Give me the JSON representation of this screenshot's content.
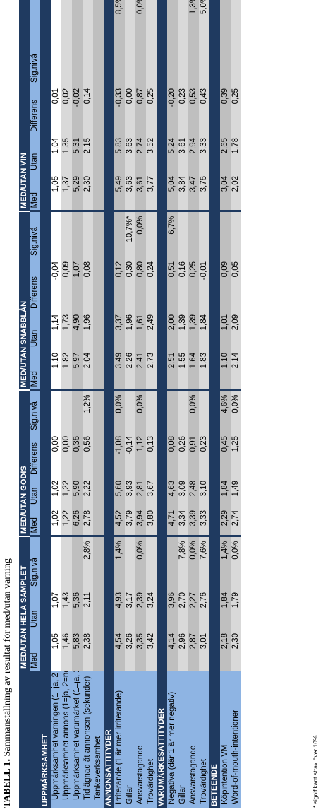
{
  "caption": {
    "number": "TABELL 1.",
    "text": "Sammanställning av resultat för med/utan varning"
  },
  "footnote": "* signifikant strax över 10%",
  "groups": [
    "MED/UTAN HELA SAMPLET",
    "MED/UTAN GODIS",
    "MED/UTAN SNABBLÅN",
    "MED/UTAN VIN"
  ],
  "columns": {
    "hela": [
      "Med",
      "Utan",
      "Sig.nivå"
    ],
    "other": [
      "Med",
      "Utan",
      "Differens",
      "Sig.nivå"
    ]
  },
  "sections": [
    {
      "title": "UPPMÄRKSAMHET",
      "rows": [
        {
          "label": "Uppmärksamhet varningen (1=ja, 2=nej)",
          "hela": [
            "1,05",
            "1,07",
            ""
          ],
          "godis": [
            "1,02",
            "1,02",
            "0,00",
            ""
          ],
          "snabblan": [
            "1,10",
            "1,14",
            "-0,04",
            ""
          ],
          "vin": [
            "1,05",
            "1,04",
            "0,01",
            ""
          ]
        },
        {
          "label": "Uppmärksamhet annons (1=ja, 2=nej)",
          "hela": [
            "1,46",
            "1,43",
            ""
          ],
          "godis": [
            "1,22",
            "1,22",
            "0,00",
            ""
          ],
          "snabblan": [
            "1,82",
            "1,73",
            "0,09",
            ""
          ],
          "vin": [
            "1,37",
            "1,35",
            "0,02",
            ""
          ]
        },
        {
          "label": "Uppmärksamhet varumärket (1=ja, 2=nej)",
          "hela": [
            "5,83",
            "5,36",
            ""
          ],
          "godis": [
            "6,26",
            "5,90",
            "0,36",
            ""
          ],
          "snabblan": [
            "5,97",
            "4,90",
            "1,07",
            ""
          ],
          "vin": [
            "5,29",
            "5,31",
            "-0,02",
            ""
          ]
        },
        {
          "label": "Tid ägnad åt annonsen (sekunder)",
          "hela": [
            "2,38",
            "2,11",
            "2,8%"
          ],
          "godis": [
            "2,78",
            "2,22",
            "0,56",
            "1,2%"
          ],
          "snabblan": [
            "2,04",
            "1,96",
            "0,08",
            ""
          ],
          "vin": [
            "2,30",
            "2,15",
            "0,14",
            ""
          ]
        },
        {
          "label": "Tankeverksamhet",
          "hela": [
            "",
            "",
            ""
          ],
          "godis": [
            "",
            "",
            "",
            ""
          ],
          "snabblan": [
            "",
            "",
            "",
            ""
          ],
          "vin": [
            "",
            "",
            "",
            ""
          ]
        }
      ]
    },
    {
      "title": "ANNONSATTITYDER",
      "rows": [
        {
          "label": "Irriterande (1 är mer irriterande)",
          "hela": [
            "4,54",
            "4,93",
            "1,4%"
          ],
          "godis": [
            "4,52",
            "5,60",
            "-1,08",
            "0,0%"
          ],
          "snabblan": [
            "3,49",
            "3,37",
            "0,12",
            ""
          ],
          "vin": [
            "5,49",
            "5,83",
            "-0,33",
            "8,5%"
          ]
        },
        {
          "label": "Gillar",
          "hela": [
            "3,26",
            "3,17",
            ""
          ],
          "godis": [
            "3,79",
            "3,93",
            "-0,14",
            ""
          ],
          "snabblan": [
            "2,26",
            "1,96",
            "0,30",
            "10,7%*"
          ],
          "vin": [
            "3,63",
            "3,63",
            "0,00",
            ""
          ]
        },
        {
          "label": "Ansvarstagande",
          "hela": [
            "3,35",
            "2,39",
            "0,0%"
          ],
          "godis": [
            "3,94",
            "2,81",
            "1,12",
            "0,0%"
          ],
          "snabblan": [
            "2,41",
            "1,61",
            "0,80",
            "0,0%"
          ],
          "vin": [
            "3,61",
            "2,74",
            "0,87",
            "0,0%"
          ]
        },
        {
          "label": "Trovärdighet",
          "hela": [
            "3,42",
            "3,24",
            ""
          ],
          "godis": [
            "3,80",
            "3,67",
            "0,13",
            ""
          ],
          "snabblan": [
            "2,73",
            "2,49",
            "0,24",
            ""
          ],
          "vin": [
            "3,77",
            "3,52",
            "0,25",
            ""
          ]
        }
      ]
    },
    {
      "title": "VARUMÄRKESATTITYDER",
      "rows": [
        {
          "label": "Negativa (där 1 är mer negativ)",
          "hela": [
            "4,14",
            "3,96",
            ""
          ],
          "godis": [
            "4,71",
            "4,63",
            "0,08",
            ""
          ],
          "snabblan": [
            "2,51",
            "2,00",
            "0,51",
            "6,7%"
          ],
          "vin": [
            "5,04",
            "5,24",
            "-0,20",
            ""
          ]
        },
        {
          "label": "Gillar",
          "hela": [
            "2,96",
            "2,70",
            "7,8%"
          ],
          "godis": [
            "3,34",
            "3,09",
            "0,26",
            ""
          ],
          "snabblan": [
            "1,55",
            "1,39",
            "0,16",
            ""
          ],
          "vin": [
            "3,84",
            "3,61",
            "0,23",
            ""
          ]
        },
        {
          "label": "Ansvarstagande",
          "hela": [
            "2,87",
            "2,27",
            "0,0%"
          ],
          "godis": [
            "3,39",
            "2,48",
            "0,91",
            "0,0%"
          ],
          "snabblan": [
            "1,64",
            "1,39",
            "0,25",
            ""
          ],
          "vin": [
            "3,47",
            "2,94",
            "0,53",
            "1,3%"
          ]
        },
        {
          "label": "Trovärdighet",
          "hela": [
            "3,01",
            "2,76",
            "7,6%"
          ],
          "godis": [
            "3,33",
            "3,10",
            "0,23",
            ""
          ],
          "snabblan": [
            "1,83",
            "1,84",
            "-0,01",
            ""
          ],
          "vin": [
            "3,76",
            "3,33",
            "0,43",
            "5,0%"
          ]
        }
      ]
    },
    {
      "title": "BETEENDE",
      "rows": [
        {
          "label": "Köpintention VM",
          "hela": [
            "2,18",
            "1,84",
            "1,4%"
          ],
          "godis": [
            "2,29",
            "1,84",
            "0,45",
            "4,6%"
          ],
          "snabblan": [
            "1,10",
            "1,01",
            "0,09",
            ""
          ],
          "vin": [
            "3,04",
            "2,65",
            "0,39",
            ""
          ]
        },
        {
          "label": "Word-of-mouth-intentioner",
          "hela": [
            "2,30",
            "1,79",
            "0,0%"
          ],
          "godis": [
            "2,74",
            "1,49",
            "1,25",
            "0,0%"
          ],
          "snabblan": [
            "2,14",
            "2,09",
            "0,05",
            ""
          ],
          "vin": [
            "2,02",
            "1,78",
            "0,25",
            ""
          ]
        }
      ]
    }
  ]
}
